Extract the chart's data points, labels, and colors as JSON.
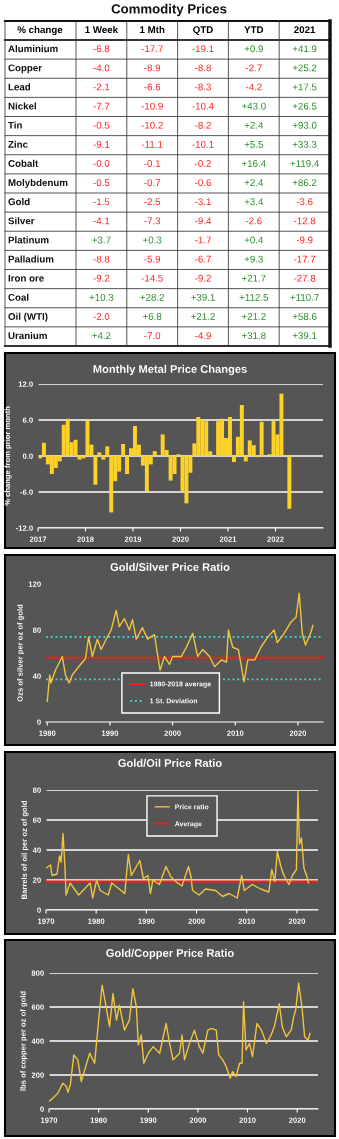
{
  "chart_data": [
    {
      "type": "heatmap",
      "title": "Commodity Prices",
      "ylabel": "% change",
      "categories": [
        "1 Week",
        "1 Mth",
        "QTD",
        "YTD",
        "2021"
      ],
      "y_categories": [
        "Aluminium",
        "Copper",
        "Lead",
        "Nickel",
        "Tin",
        "Zinc",
        "Cobalt",
        "Molybdenum",
        "Gold",
        "Silver",
        "Platinum",
        "Palladium",
        "Iron ore",
        "Coal",
        "Oil (WTI)",
        "Uranium"
      ],
      "cells": [
        [
          -6.8,
          -17.7,
          -19.1,
          0.9,
          41.9
        ],
        [
          -4.0,
          -8.9,
          -8.8,
          -2.7,
          25.2
        ],
        [
          -2.1,
          -6.6,
          -8.3,
          -4.2,
          17.5
        ],
        [
          -7.7,
          -10.9,
          -10.4,
          43.0,
          26.5
        ],
        [
          -0.5,
          -10.2,
          -8.2,
          2.4,
          93.0
        ],
        [
          -9.1,
          -11.1,
          -10.1,
          5.5,
          33.3
        ],
        [
          -0.0,
          -0.1,
          -0.2,
          16.4,
          119.4
        ],
        [
          -0.5,
          -0.7,
          -0.6,
          2.4,
          86.2
        ],
        [
          -1.5,
          -2.5,
          -3.1,
          3.4,
          -3.6
        ],
        [
          -4.1,
          -7.3,
          -9.4,
          -2.6,
          -12.8
        ],
        [
          3.7,
          0.3,
          -1.7,
          0.4,
          -9.9
        ],
        [
          -8.8,
          -5.9,
          -6.7,
          9.3,
          -17.7
        ],
        [
          -9.2,
          -14.5,
          -9.2,
          21.7,
          -27.8
        ],
        [
          10.3,
          28.2,
          39.1,
          112.5,
          110.7
        ],
        [
          -2.0,
          6.8,
          21.2,
          21.2,
          58.6
        ],
        [
          4.2,
          -7.0,
          -4.9,
          31.8,
          39.1
        ]
      ],
      "cell_labels": [
        [
          "-6.8",
          "-17.7",
          "-19.1",
          "+0.9",
          "+41.9"
        ],
        [
          "-4.0",
          "-8.9",
          "-8.8",
          "-2.7",
          "+25.2"
        ],
        [
          "-2.1",
          "-6.6",
          "-8.3",
          "-4.2",
          "+17.5"
        ],
        [
          "-7.7",
          "-10.9",
          "-10.4",
          "+43.0",
          "+26.5"
        ],
        [
          "-0.5",
          "-10.2",
          "-8.2",
          "+2.4",
          "+93.0"
        ],
        [
          "-9.1",
          "-11.1",
          "-10.1",
          "+5.5",
          "+33.3"
        ],
        [
          "-0.0",
          "-0.1",
          "-0.2",
          "+16.4",
          "+119.4"
        ],
        [
          "-0.5",
          "-0.7",
          "-0.6",
          "+2.4",
          "+86.2"
        ],
        [
          "-1.5",
          "-2.5",
          "-3.1",
          "+3.4",
          "-3.6"
        ],
        [
          "-4.1",
          "-7.3",
          "-9.4",
          "-2.6",
          "-12.8"
        ],
        [
          "+3.7",
          "+0.3",
          "-1.7",
          "+0.4",
          "-9.9"
        ],
        [
          "-8.8",
          "-5.9",
          "-6.7",
          "+9.3",
          "-17.7"
        ],
        [
          "-9.2",
          "-14.5",
          "-9.2",
          "+21.7",
          "-27.8"
        ],
        [
          "+10.3",
          "+28.2",
          "+39.1",
          "+112.5",
          "+110.7"
        ],
        [
          "-2.0",
          "+6.8",
          "+21.2",
          "+21.2",
          "+58.6"
        ],
        [
          "+4.2",
          "-7.0",
          "-4.9",
          "+31.8",
          "+39.1"
        ]
      ]
    },
    {
      "type": "bar",
      "title": "Monthly Metal Price Changes",
      "ylabel": "% change from prior month",
      "color": "#fcd12a",
      "grid": "y",
      "x": [
        "2017-01",
        "2017-02",
        "2017-03",
        "2017-04",
        "2017-05",
        "2017-06",
        "2017-07",
        "2017-08",
        "2017-09",
        "2017-10",
        "2017-11",
        "2017-12",
        "2018-01",
        "2018-02",
        "2018-03",
        "2018-04",
        "2018-05",
        "2018-06",
        "2018-07",
        "2018-08",
        "2018-09",
        "2018-10",
        "2018-11",
        "2018-12",
        "2019-01",
        "2019-02",
        "2019-03",
        "2019-04",
        "2019-05",
        "2019-06",
        "2019-07",
        "2019-08",
        "2019-09",
        "2019-10",
        "2019-11",
        "2019-12",
        "2020-01",
        "2020-02",
        "2020-03",
        "2020-04",
        "2020-05",
        "2020-06",
        "2020-07",
        "2020-08",
        "2020-09",
        "2020-10",
        "2020-11",
        "2020-12",
        "2021-01",
        "2021-02",
        "2021-03",
        "2021-04",
        "2021-05",
        "2021-06",
        "2021-07",
        "2021-08",
        "2021-09",
        "2021-10",
        "2021-11",
        "2021-12",
        "2022-01",
        "2022-02",
        "2022-03",
        "2022-04"
      ],
      "values": [
        -0.4,
        2.2,
        -1.4,
        -3.0,
        -2.0,
        -0.9,
        5.2,
        6.2,
        2.3,
        2.7,
        -0.6,
        -0.4,
        6.0,
        1.9,
        -4.8,
        0.6,
        -0.6,
        1.6,
        -9.4,
        -4.2,
        -2.6,
        2.0,
        -3.0,
        1.3,
        5.0,
        1.9,
        -1.6,
        -5.9,
        -1.4,
        0.8,
        0.0,
        3.6,
        1.0,
        -4.1,
        -3.0,
        0.3,
        -5.9,
        -7.9,
        -2.8,
        2.1,
        6.5,
        6.1,
        5.8,
        0.8,
        0.0,
        5.8,
        6.2,
        3.0,
        6.5,
        -1.0,
        3.2,
        8.5,
        -0.9,
        2.6,
        1.8,
        -0.2,
        5.7,
        0.0,
        0.3,
        5.9,
        3.6,
        10.4,
        0.1,
        -8.8
      ],
      "xlim": [
        "2017-01",
        "2023-01"
      ],
      "xticks": [
        {
          "value": "2017-01",
          "label": "2017"
        },
        {
          "value": "2018-01",
          "label": "2018"
        },
        {
          "value": "2019-01",
          "label": "2019"
        },
        {
          "value": "2020-01",
          "label": "2020"
        },
        {
          "value": "2021-01",
          "label": "2021"
        },
        {
          "value": "2022-01",
          "label": "2022"
        }
      ],
      "ylim": [
        -12,
        12
      ],
      "yticks": [
        {
          "value": -12,
          "label": "-12.0"
        },
        {
          "value": -6,
          "label": "-6.0"
        },
        {
          "value": 0,
          "label": "0.0"
        },
        {
          "value": 6,
          "label": "6.0"
        },
        {
          "value": 12,
          "label": "12.0"
        }
      ]
    },
    {
      "type": "line",
      "title": "Gold/Silver Price Ratio",
      "ylabel": "Ozs of silver per oz of gold",
      "legend": "bottom",
      "series": [
        {
          "color": "#f2c53d",
          "x": [
            1980.0,
            1980.4,
            1980.6,
            1981.3,
            1982.4,
            1982.9,
            1983.5,
            1984.0,
            1985.3,
            1986.1,
            1986.6,
            1987.2,
            1988.0,
            1988.6,
            1989.4,
            1990.2,
            1991.0,
            1991.5,
            1992.3,
            1993.1,
            1993.6,
            1994.2,
            1995.2,
            1996.0,
            1997.1,
            1998.0,
            1998.7,
            1999.5,
            2000.0,
            2001.4,
            2002.2,
            2003.2,
            2004.0,
            2004.8,
            2005.9,
            2006.7,
            2007.8,
            2008.6,
            2008.9,
            2009.6,
            2010.5,
            2011.4,
            2012.0,
            2013.1,
            2014.1,
            2015.2,
            2016.2,
            2016.7,
            2017.8,
            2018.9,
            2019.7,
            2020.2,
            2020.7,
            2021.2,
            2022.0,
            2022.4
          ],
          "values": [
            18,
            41,
            34,
            45,
            57,
            41,
            34,
            41,
            50,
            55,
            74,
            57,
            72,
            63,
            72,
            80,
            97,
            83,
            90,
            80,
            89,
            72,
            82,
            72,
            76,
            45,
            57,
            50,
            57,
            57,
            65,
            77,
            57,
            63,
            57,
            48,
            54,
            52,
            80,
            65,
            63,
            35,
            54,
            54,
            65,
            74,
            80,
            69,
            77,
            87,
            91,
            112,
            77,
            67,
            77,
            84
          ]
        }
      ],
      "ref_lines": [
        {
          "axis": "y",
          "value": 56,
          "label": "1980-2018 average",
          "color": "#ff1a1a",
          "line_style": "solid"
        },
        {
          "axis": "y",
          "value": 74,
          "label": "1 St. Deviation",
          "color": "#33e6e6",
          "line_style": "dotted"
        },
        {
          "axis": "y",
          "value": 37,
          "color": "#33e6e6",
          "line_style": "dotted"
        }
      ],
      "xlim": [
        1979.8,
        2024
      ],
      "xticks": [
        1980,
        1990,
        2000,
        2010,
        2020
      ],
      "ylim": [
        0,
        120
      ],
      "yticks": [
        0,
        40,
        80,
        120
      ]
    },
    {
      "type": "line",
      "title": "Gold/Oil Price Ratio",
      "ylabel": "Barrels of oil per oz of gold",
      "legend": "top",
      "grid": "y",
      "series": [
        {
          "name": "Price ratio",
          "color": "#f2c53d",
          "x": [
            1970.0,
            1970.9,
            1971.2,
            1972.2,
            1972.7,
            1973.0,
            1973.4,
            1973.8,
            1974.0,
            1974.8,
            1976.5,
            1978.8,
            1979.3,
            1980.1,
            1980.8,
            1982.4,
            1983.1,
            1985.7,
            1986.4,
            1987.0,
            1988.7,
            1989.4,
            1990.3,
            1990.8,
            1991.3,
            1992.6,
            1993.9,
            1994.9,
            1996.2,
            1997.1,
            1998.4,
            1998.9,
            1999.2,
            2000.5,
            2001.8,
            2003.8,
            2005.2,
            2006.5,
            2008.1,
            2009.0,
            2009.5,
            2011.1,
            2012.8,
            2014.4,
            2015.0,
            2015.6,
            2016.1,
            2016.8,
            2017.4,
            2018.4,
            2019.1,
            2019.9,
            2020.2,
            2020.5,
            2020.9,
            2021.4,
            2022.0,
            2022.3
          ],
          "values": [
            28,
            30,
            23,
            24,
            36,
            32,
            51,
            27,
            10,
            18,
            10,
            18,
            8,
            20,
            13,
            10,
            18,
            11,
            37,
            23,
            33,
            21,
            23,
            11,
            20,
            17,
            29,
            22,
            18,
            16,
            29,
            22,
            13,
            10,
            14,
            13,
            9,
            11,
            8,
            23,
            13,
            17,
            14,
            12,
            27,
            19,
            39,
            29,
            23,
            17,
            23,
            27,
            80,
            44,
            48,
            28,
            22,
            18
          ]
        }
      ],
      "ref_lines": [
        {
          "axis": "y",
          "value": 19,
          "label": "Average",
          "color": "#ff1a1a",
          "line_style": "solid"
        }
      ],
      "xlim": [
        1970,
        2024.2
      ],
      "xticks": [
        1970,
        1980,
        1990,
        2000,
        2010,
        2020
      ],
      "ylim": [
        0,
        80
      ],
      "yticks": [
        0,
        20,
        40,
        60,
        80
      ]
    },
    {
      "type": "line",
      "title": "Gold/Copper Price Ratio",
      "ylabel": "lbs of copper per oz of gold",
      "grid": "y",
      "series": [
        {
          "color": "#f2c53d",
          "x": [
            1970.0,
            1970.8,
            1971.8,
            1972.8,
            1973.5,
            1973.8,
            1974.3,
            1975.0,
            1975.8,
            1976.5,
            1977.2,
            1978.2,
            1979.2,
            1979.5,
            1980.2,
            1980.7,
            1981.4,
            1982.2,
            1982.9,
            1983.6,
            1984.2,
            1985.2,
            1986.2,
            1986.9,
            1987.6,
            1988.0,
            1988.6,
            1989.1,
            1990.0,
            1991.0,
            1992.3,
            1993.6,
            1994.3,
            1995.0,
            1996.3,
            1996.8,
            1997.3,
            1998.3,
            1999.3,
            2000.3,
            2001.0,
            2002.0,
            2002.7,
            2003.7,
            2004.2,
            2005.0,
            2005.7,
            2006.5,
            2007.0,
            2007.7,
            2008.4,
            2008.9,
            2009.2,
            2009.7,
            2010.4,
            2011.0,
            2011.9,
            2012.8,
            2013.8,
            2014.6,
            2015.4,
            2016.4,
            2017.0,
            2017.8,
            2018.8,
            2019.3,
            2019.7,
            2020.3,
            2021.0,
            2021.5,
            2022.2,
            2022.6
          ],
          "values": [
            45,
            64,
            94,
            152,
            133,
            98,
            142,
            318,
            289,
            162,
            230,
            328,
            269,
            367,
            582,
            728,
            620,
            484,
            679,
            523,
            611,
            464,
            523,
            708,
            601,
            377,
            435,
            269,
            328,
            367,
            328,
            503,
            386,
            289,
            328,
            435,
            289,
            386,
            464,
            367,
            328,
            464,
            474,
            464,
            318,
            289,
            250,
            181,
            220,
            191,
            269,
            269,
            630,
            347,
            386,
            308,
            503,
            464,
            386,
            425,
            484,
            620,
            484,
            425,
            464,
            542,
            582,
            741,
            591,
            425,
            406,
            445
          ]
        }
      ],
      "xlim": [
        1970,
        2024.2
      ],
      "xticks": [
        1970,
        1980,
        1990,
        2000,
        2010,
        2020
      ],
      "ylim": [
        0,
        800
      ],
      "yticks": [
        0,
        200,
        400,
        600,
        800
      ]
    }
  ]
}
